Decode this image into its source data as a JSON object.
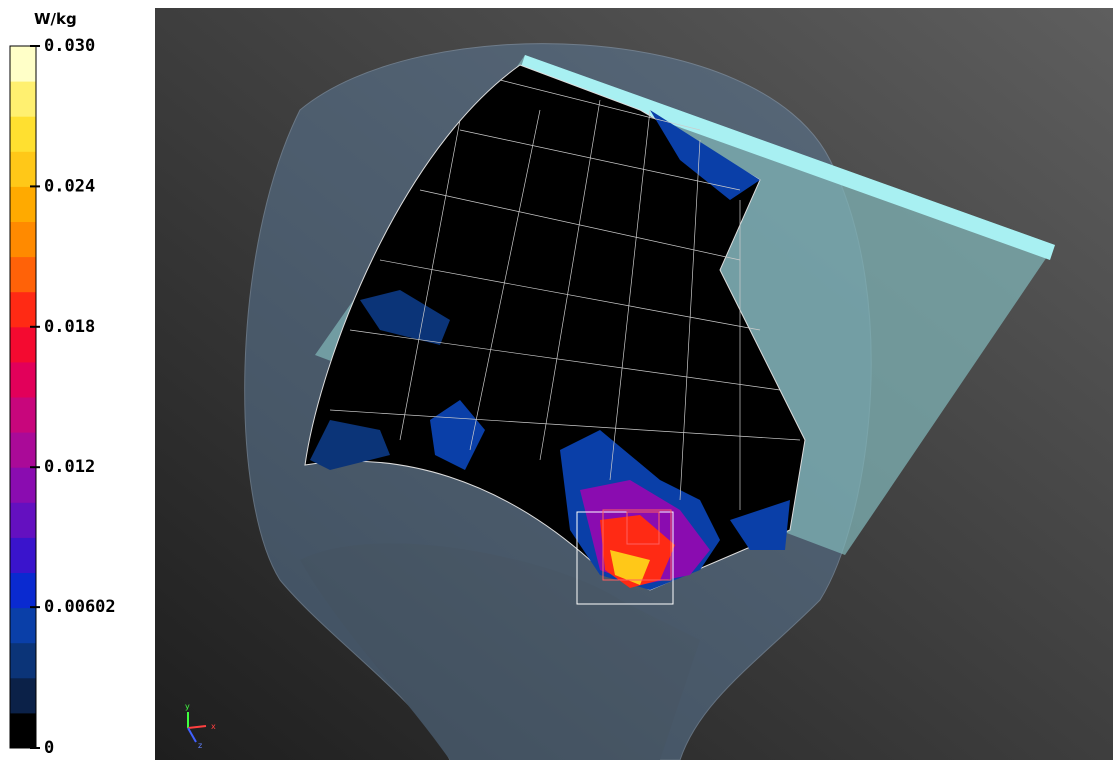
{
  "colorbar": {
    "unit": "W/kg",
    "min": 0,
    "max": 0.03,
    "ticks": [
      0,
      0.00602,
      0.012,
      0.018,
      0.024,
      {
        "value": 0.03,
        "label": "0.030"
      }
    ],
    "colors": [
      "#000000",
      "#0b2148",
      "#0b3478",
      "#0a3fa8",
      "#0a2ad0",
      "#3a14cc",
      "#6410c0",
      "#8a0cb0",
      "#aa0a98",
      "#c8067c",
      "#e2005a",
      "#f40a30",
      "#ff2a14",
      "#ff6208",
      "#ff8a00",
      "#ffaa00",
      "#ffc818",
      "#ffe030",
      "#fff070",
      "#ffffc8"
    ]
  },
  "axes": {
    "x": "x",
    "y": "y",
    "z": "z"
  }
}
